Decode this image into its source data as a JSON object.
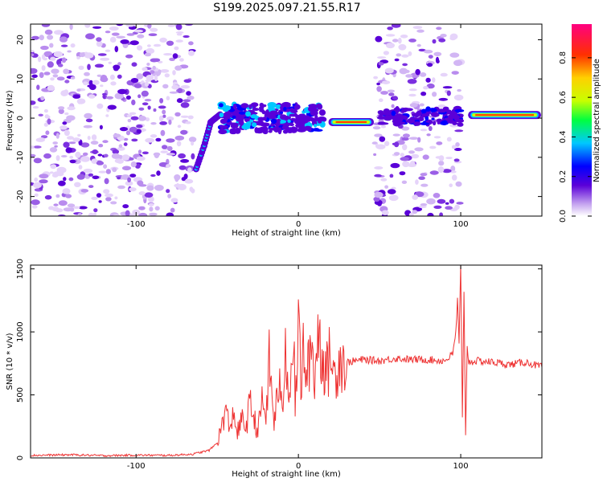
{
  "title": "S199.2025.097.21.55.R17",
  "chart_data": [
    {
      "type": "heatmap",
      "xlabel": "Height of straight line (km)",
      "ylabel": "Frequency (Hz)",
      "xlim": [
        -165,
        150
      ],
      "ylim": [
        -25,
        24
      ],
      "x_ticks": [
        -100,
        0,
        100
      ],
      "x_tick_labels": [
        "-100",
        "0",
        "100"
      ],
      "y_ticks": [
        -20,
        -10,
        0,
        10,
        20
      ],
      "y_tick_labels": [
        "-20",
        "-10",
        "0",
        "10",
        "20"
      ],
      "colorbar": {
        "label": "Normalized spectral amplitude",
        "range": [
          0,
          0.97
        ],
        "ticks": [
          0,
          0.2,
          0.4,
          0.6,
          0.8
        ],
        "tick_labels": [
          "0.0",
          "0.2",
          "0.4",
          "0.6",
          "0.8"
        ],
        "colormap": [
          "#ffffff",
          "#c8a8f0",
          "#5a00d8",
          "#0000ff",
          "#00c8ff",
          "#00ff40",
          "#c8ff00",
          "#ffd000",
          "#ff3000",
          "#ff0080"
        ]
      },
      "features": [
        {
          "name": "noise",
          "x_range": [
            -165,
            -65
          ]
        },
        {
          "name": "rising track",
          "points": [
            [
              -63,
              -13
            ],
            [
              -58,
              -7
            ],
            [
              -54,
              -1
            ],
            [
              -48,
              1
            ]
          ]
        },
        {
          "name": "band",
          "x_range": [
            -48,
            15
          ],
          "frequency": 0
        },
        {
          "name": "strong line",
          "x_range": [
            20,
            45
          ],
          "frequency": -1
        },
        {
          "name": "noise",
          "x_range": [
            45,
            100
          ]
        },
        {
          "name": "band",
          "x_range": [
            50,
            100
          ],
          "frequency": 0.5
        },
        {
          "name": "strong line",
          "x_range": [
            106,
            148
          ],
          "frequency": 0.8
        }
      ]
    },
    {
      "type": "line",
      "xlabel": "Height of straight line (km)",
      "ylabel": "SNR (10 * v/v)",
      "xlim": [
        -165,
        150
      ],
      "ylim": [
        0,
        1530
      ],
      "x_ticks": [
        -100,
        0,
        100
      ],
      "x_tick_labels": [
        "-100",
        "0",
        "100"
      ],
      "y_ticks": [
        0,
        500,
        1000,
        1500
      ],
      "y_tick_labels": [
        "0",
        "500",
        "1000",
        "1500"
      ],
      "color": "#ee3333",
      "x": [
        -165,
        -140,
        -120,
        -100,
        -80,
        -65,
        -55,
        -50,
        -47,
        -45,
        -42,
        -40,
        -38,
        -35,
        -32,
        -30,
        -28,
        -25,
        -22,
        -20,
        -18,
        -15,
        -12,
        -10,
        -8,
        -5,
        -3,
        -2,
        0,
        2,
        3,
        5,
        8,
        10,
        12,
        15,
        18,
        20,
        22,
        25,
        28,
        30,
        35,
        40,
        50,
        60,
        70,
        80,
        90,
        95,
        97,
        98,
        99,
        100,
        101,
        102,
        103,
        104,
        105,
        110,
        120,
        130,
        140,
        150
      ],
      "y": [
        20,
        25,
        18,
        22,
        20,
        30,
        60,
        120,
        260,
        400,
        200,
        420,
        180,
        300,
        250,
        430,
        350,
        200,
        480,
        300,
        760,
        280,
        600,
        350,
        880,
        500,
        1080,
        300,
        1150,
        400,
        980,
        580,
        940,
        620,
        1010,
        780,
        680,
        880,
        620,
        790,
        760,
        760,
        770,
        780,
        770,
        790,
        780,
        780,
        770,
        820,
        1000,
        1250,
        900,
        1530,
        300,
        1300,
        200,
        880,
        760,
        770,
        760,
        740,
        760,
        720
      ]
    }
  ]
}
